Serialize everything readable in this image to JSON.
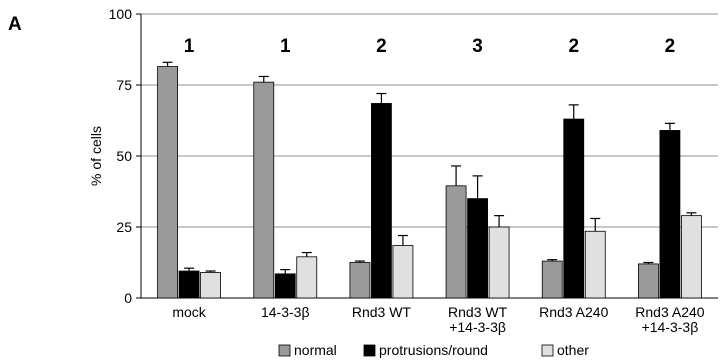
{
  "panel_label": "A",
  "chart_data": {
    "type": "bar",
    "ylabel": "% of cells",
    "xlabel": "",
    "ylim": [
      0,
      100
    ],
    "yticks": [
      0,
      25,
      50,
      75,
      100
    ],
    "grid": "horizontal",
    "legend_position": "bottom",
    "categories": [
      [
        "mock"
      ],
      [
        "14-3-3β"
      ],
      [
        "Rnd3 WT"
      ],
      [
        "Rnd3 WT",
        "+14-3-3β"
      ],
      [
        "Rnd3 A240"
      ],
      [
        "Rnd3 A240",
        "+14-3-3β"
      ]
    ],
    "group_labels": [
      "1",
      "1",
      "2",
      "3",
      "2",
      "2"
    ],
    "series": [
      {
        "name": "normal",
        "color": "#9a9a9a",
        "values": [
          81.5,
          76,
          12.5,
          39.5,
          13,
          12
        ],
        "errors": [
          1.5,
          2,
          0.5,
          7,
          0.5,
          0.5
        ]
      },
      {
        "name": "protrusions/round",
        "color": "#000000",
        "values": [
          9.5,
          8.5,
          68.5,
          35,
          63,
          59
        ],
        "errors": [
          1,
          1.5,
          3.5,
          8,
          5,
          2.5
        ]
      },
      {
        "name": "other",
        "color": "#e0e0e0",
        "values": [
          9,
          14.5,
          18.5,
          25,
          23.5,
          29
        ],
        "errors": [
          0.5,
          1.5,
          3.5,
          4,
          4.5,
          1
        ]
      }
    ]
  }
}
